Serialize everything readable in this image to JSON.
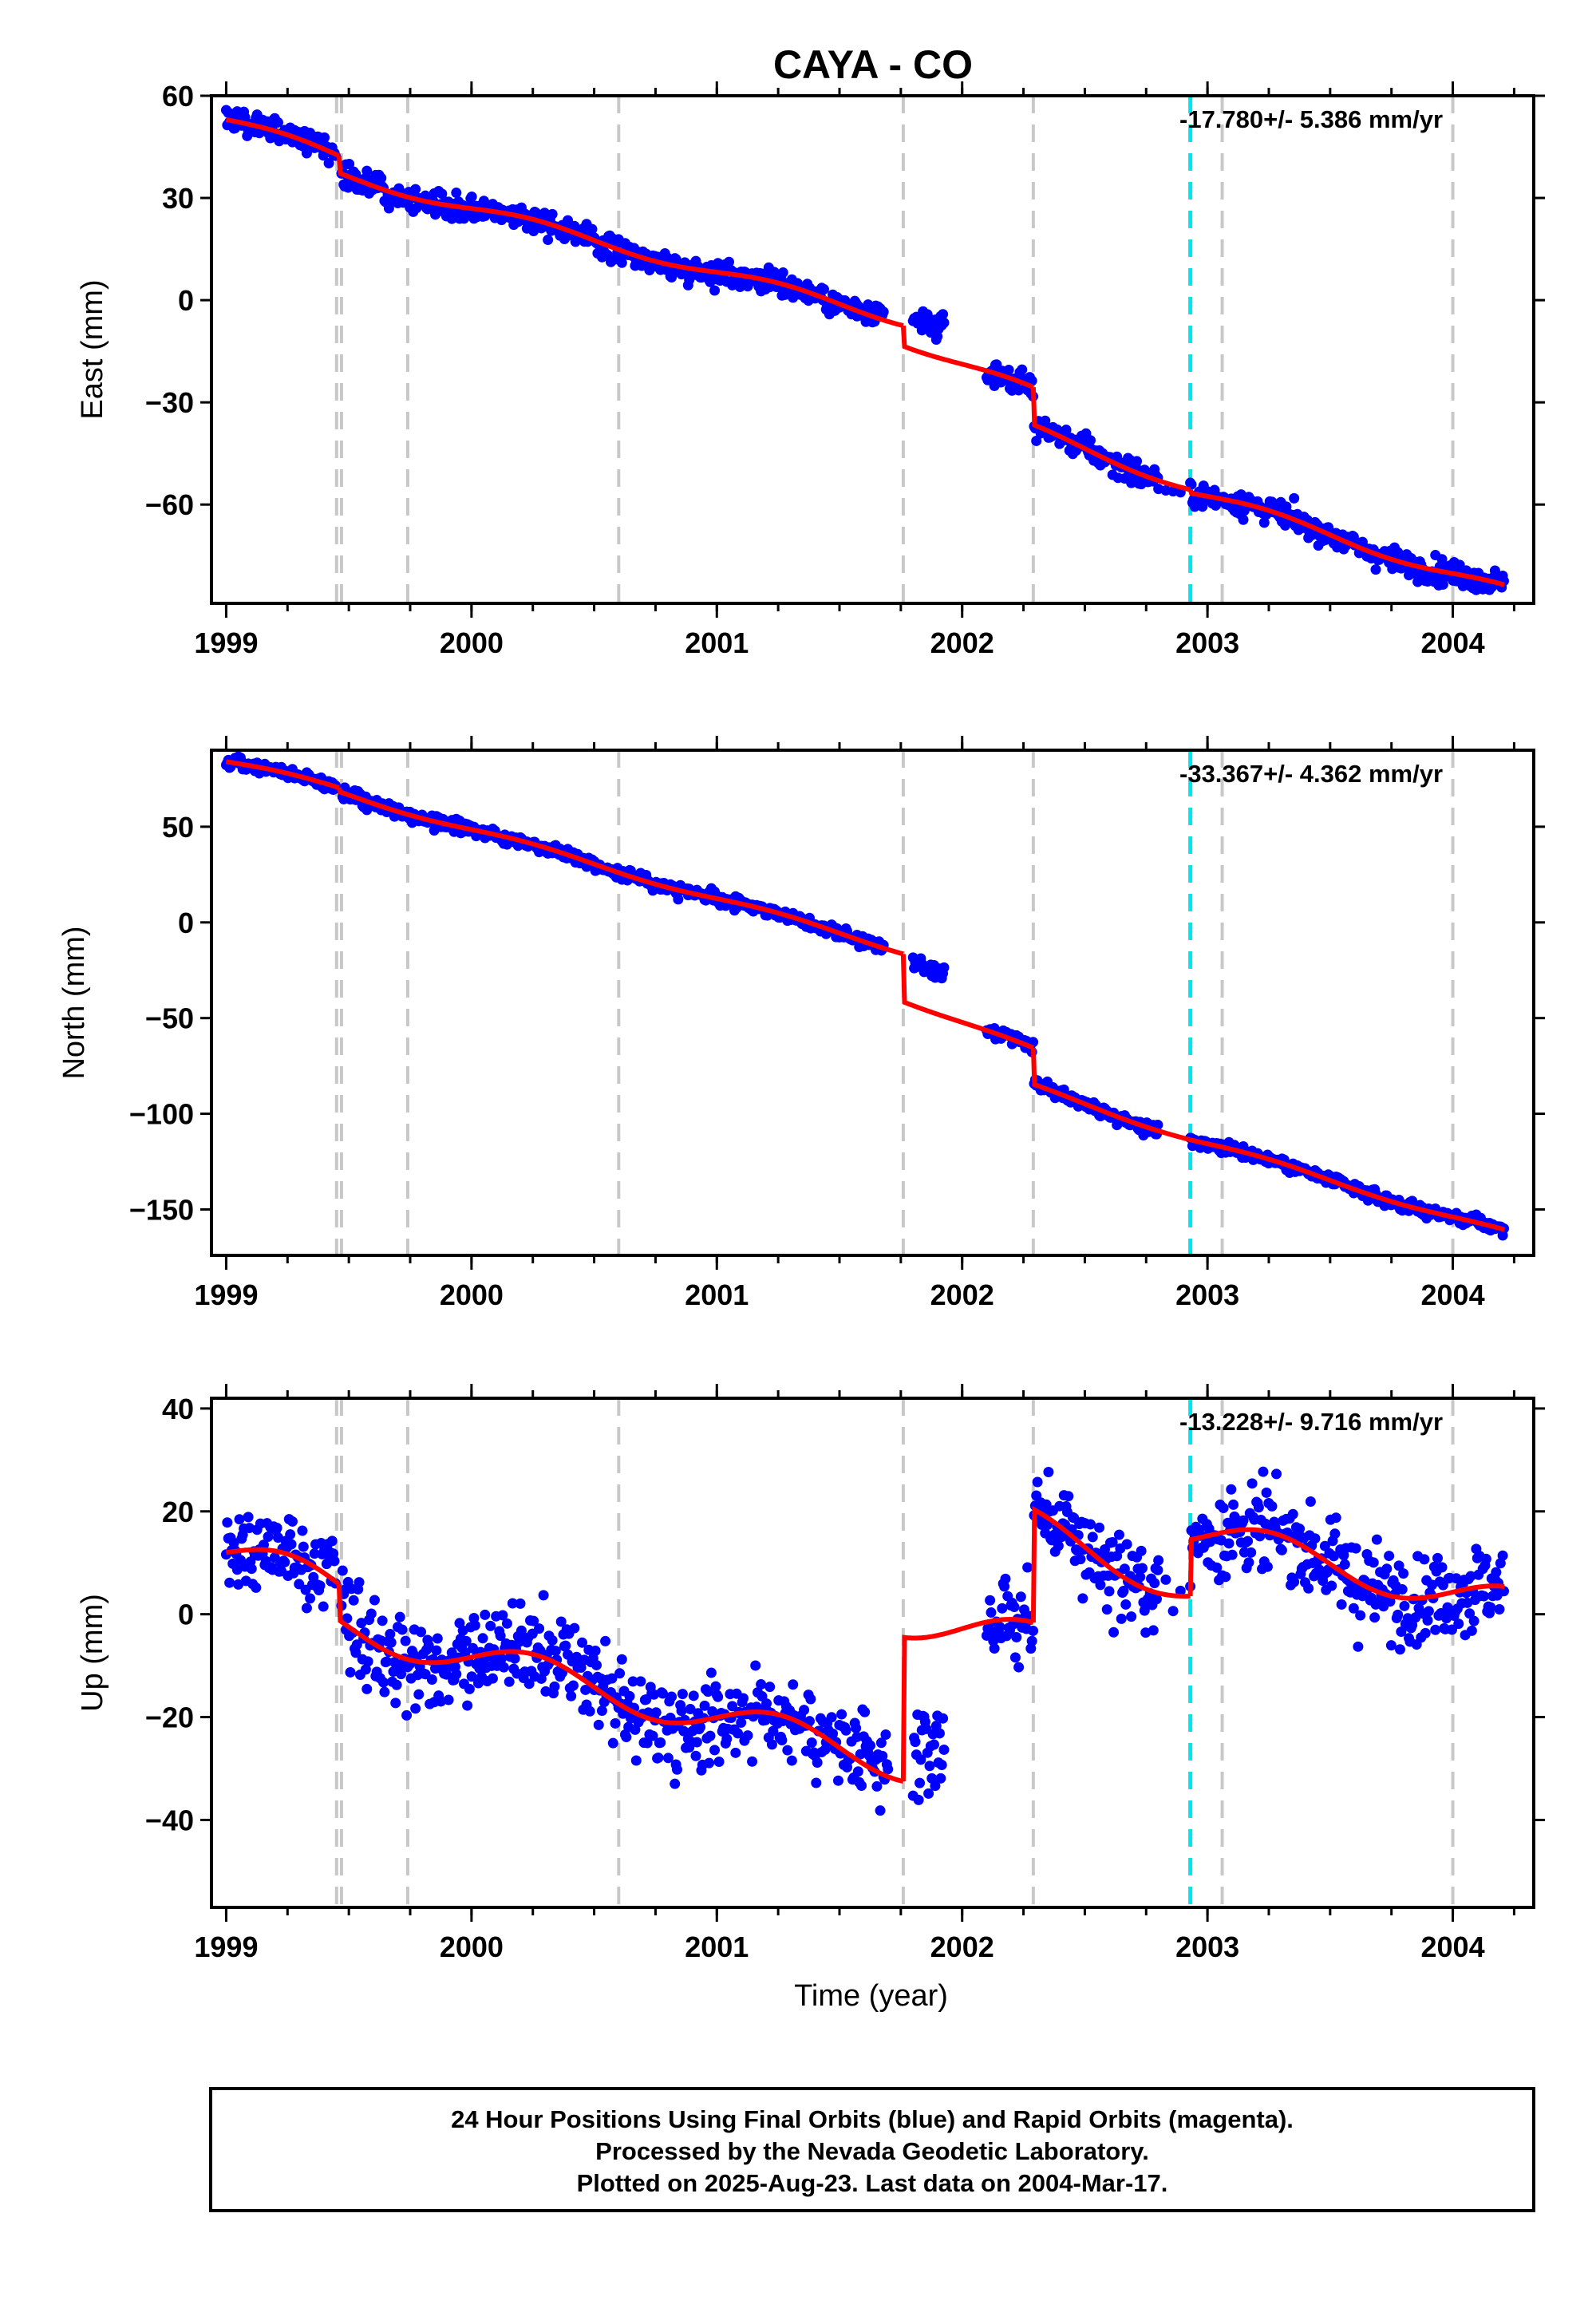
{
  "title": "CAYA - CO",
  "footer": {
    "lines": [
      "24 Hour Positions Using Final Orbits (blue) and Rapid Orbits (magenta).",
      "Processed by the Nevada Geodetic Laboratory.",
      "Plotted on 2025-Aug-23. Last data on 2004-Mar-17."
    ]
  },
  "colors": {
    "data_points": "#0000ff",
    "model_fit": "#ff0000",
    "equipment_change": "#c8c8c8",
    "earthquake_event": "#00e5ee"
  },
  "chart_data": [
    {
      "type": "scatter",
      "ylabel": "East (mm)",
      "rate_text": "-17.780+/- 5.386 mm/yr",
      "xlim": [
        1998.94,
        2004.33
      ],
      "ylim": [
        -89,
        60
      ],
      "yticks": [
        60,
        30,
        0,
        -30,
        -60
      ],
      "ytick_labels": [
        "60",
        "30",
        "0",
        "−30",
        "−60"
      ],
      "xticks": [
        1999,
        2000,
        2001,
        2002,
        2003,
        2004
      ],
      "xtick_labels": [
        "1999",
        "2000",
        "2001",
        "2002",
        "2003",
        "2004"
      ],
      "x_minor_step": 0.25,
      "equipment_changes": [
        1999.45,
        1999.47,
        1999.74,
        2000.6,
        2001.76,
        2002.29,
        2003.06,
        2004.0
      ],
      "earthquakes": [
        2002.93
      ],
      "trend_rate": -17.78,
      "seasonal_amp": 1.5,
      "noise": 2.5,
      "data_segments": [
        [
          1999.0,
          1999.45
        ],
        [
          1999.47,
          2001.68
        ],
        [
          2001.8,
          2001.93
        ],
        [
          2002.1,
          2002.8
        ],
        [
          2002.93,
          2004.21
        ]
      ],
      "sparse_segments": [
        [
          2002.8,
          2002.9
        ]
      ],
      "model_segments": [
        {
          "x0": 1999.0,
          "x1": 1999.46,
          "y0": 53,
          "y1": 42
        },
        {
          "x0": 1999.46,
          "x1": 2001.76,
          "y0": 37,
          "y1": -6
        },
        {
          "x0": 2001.76,
          "x1": 2002.29,
          "y0": -12,
          "y1": -27
        },
        {
          "x0": 2002.29,
          "x1": 2002.93,
          "y0": -38,
          "y1": -55
        },
        {
          "x0": 2002.93,
          "x1": 2004.21,
          "y0": -56,
          "y1": -85
        }
      ],
      "data_offsets": [
        {
          "x0": 2001.8,
          "x1": 2001.93,
          "dy": 9
        }
      ]
    },
    {
      "type": "scatter",
      "ylabel": "North (mm)",
      "rate_text": "-33.367+/- 4.362 mm/yr",
      "xlim": [
        1998.94,
        2004.33
      ],
      "ylim": [
        -174,
        90
      ],
      "yticks": [
        50,
        0,
        -50,
        -100,
        -150
      ],
      "ytick_labels": [
        "50",
        "0",
        "−50",
        "−100",
        "−150"
      ],
      "xticks": [
        1999,
        2000,
        2001,
        2002,
        2003,
        2004
      ],
      "xtick_labels": [
        "1999",
        "2000",
        "2001",
        "2002",
        "2003",
        "2004"
      ],
      "x_minor_step": 0.25,
      "equipment_changes": [
        1999.45,
        1999.47,
        1999.74,
        2000.6,
        2001.76,
        2002.29,
        2003.06,
        2004.0
      ],
      "earthquakes": [
        2002.93
      ],
      "trend_rate": -33.367,
      "seasonal_amp": 1.5,
      "noise": 2.2,
      "data_segments": [
        [
          1999.0,
          1999.45
        ],
        [
          1999.47,
          2001.68
        ],
        [
          2001.8,
          2001.93
        ],
        [
          2002.1,
          2002.8
        ],
        [
          2002.93,
          2004.21
        ]
      ],
      "sparse_segments": [],
      "model_segments": [
        {
          "x0": 1999.0,
          "x1": 1999.46,
          "y0": 84,
          "y1": 70
        },
        {
          "x0": 1999.46,
          "x1": 2001.76,
          "y0": 68,
          "y1": -15
        },
        {
          "x0": 2001.76,
          "x1": 2002.29,
          "y0": -40,
          "y1": -67
        },
        {
          "x0": 2002.29,
          "x1": 2002.93,
          "y0": -86,
          "y1": -113
        },
        {
          "x0": 2002.93,
          "x1": 2004.21,
          "y0": -113,
          "y1": -162
        }
      ],
      "data_offsets": [
        {
          "x0": 2001.8,
          "x1": 2001.93,
          "dy": 22
        }
      ]
    },
    {
      "type": "scatter",
      "ylabel": "Up (mm)",
      "rate_text": "-13.228+/- 9.716 mm/yr",
      "xlim": [
        1998.94,
        2004.33
      ],
      "ylim": [
        -57,
        42
      ],
      "yticks": [
        40,
        20,
        0,
        -20,
        -40
      ],
      "ytick_labels": [
        "40",
        "20",
        "0",
        "−20",
        "−40"
      ],
      "xticks": [
        1999,
        2000,
        2001,
        2002,
        2003,
        2004
      ],
      "xtick_labels": [
        "1999",
        "2000",
        "2001",
        "2002",
        "2003",
        "2004"
      ],
      "xlabel": "Time (year)",
      "x_minor_step": 0.25,
      "equipment_changes": [
        1999.45,
        1999.47,
        1999.74,
        2000.6,
        2001.76,
        2002.29,
        2003.06,
        2004.0
      ],
      "earthquakes": [
        2002.93
      ],
      "trend_rate": -13.228,
      "seasonal_amp": 3.5,
      "noise": 6.0,
      "data_segments": [
        [
          1999.0,
          1999.45
        ],
        [
          1999.47,
          2001.7
        ],
        [
          2001.8,
          2001.93
        ],
        [
          2002.1,
          2002.8
        ],
        [
          2002.93,
          2004.21
        ]
      ],
      "sparse_segments": [
        [
          2002.8,
          2002.9
        ]
      ],
      "model_segments": [
        {
          "x0": 1999.0,
          "x1": 1999.46,
          "y0": 12,
          "y1": 5
        },
        {
          "x0": 1999.46,
          "x1": 2001.76,
          "y0": -2,
          "y1": -29
        },
        {
          "x0": 2001.76,
          "x1": 2002.29,
          "y0": -1,
          "y1": -5
        },
        {
          "x0": 2002.29,
          "x1": 2002.93,
          "y0": 17,
          "y1": 5
        },
        {
          "x0": 2002.93,
          "x1": 2004.21,
          "y0": 16,
          "y1": 2
        }
      ],
      "data_offsets": [
        {
          "x0": 2001.8,
          "x1": 2001.93,
          "dy": -22
        }
      ]
    }
  ]
}
